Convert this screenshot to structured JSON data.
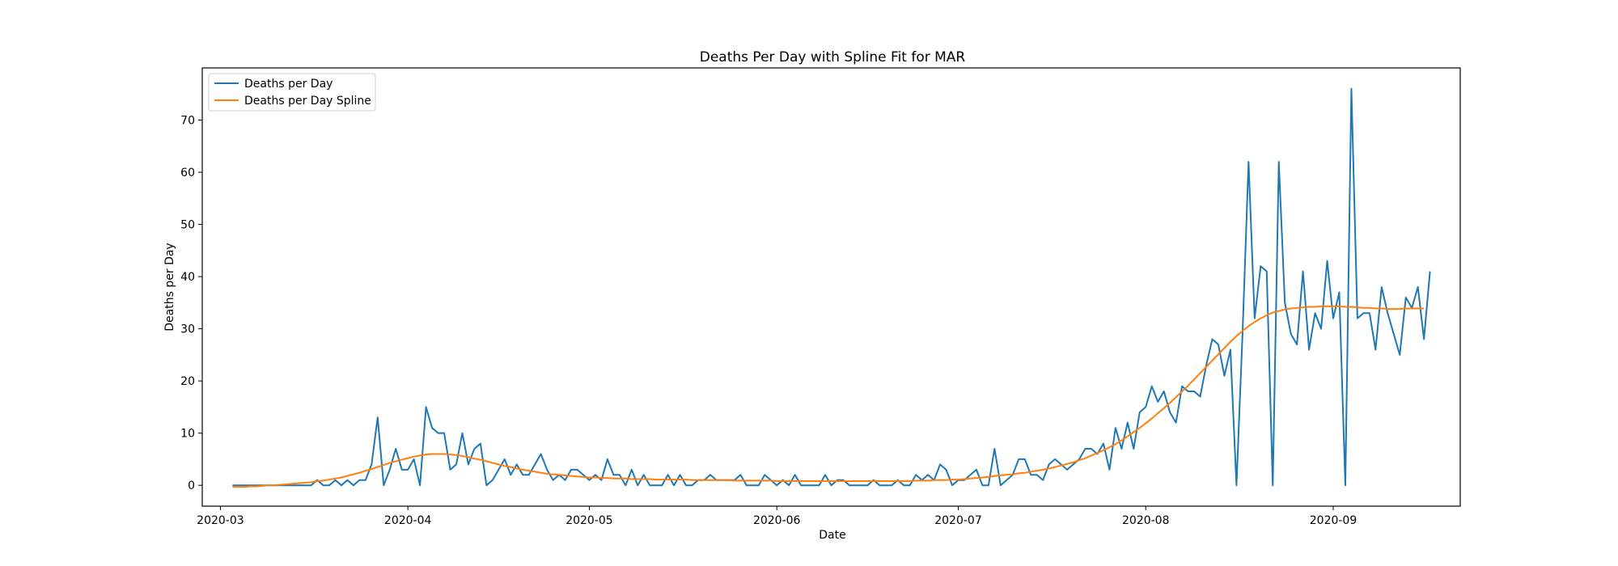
{
  "chart_data": {
    "type": "line",
    "title": "Deaths Per Day with Spline Fit for MAR",
    "xlabel": "Date",
    "ylabel": "Deaths per Day",
    "start_date": "2020-03-03",
    "x_range_days": [
      -5,
      203
    ],
    "ylim": [
      -4,
      80
    ],
    "x_ticks": [
      {
        "label": "2020-03",
        "day": -2
      },
      {
        "label": "2020-04",
        "day": 29
      },
      {
        "label": "2020-05",
        "day": 59
      },
      {
        "label": "2020-06",
        "day": 90
      },
      {
        "label": "2020-07",
        "day": 120
      },
      {
        "label": "2020-08",
        "day": 151
      },
      {
        "label": "2020-09",
        "day": 182
      }
    ],
    "y_ticks": [
      0,
      10,
      20,
      30,
      40,
      50,
      60,
      70
    ],
    "legend": {
      "position": "upper-left"
    },
    "series": [
      {
        "name": "Deaths per Day",
        "color": "#1f77b4",
        "values": [
          0,
          0,
          0,
          0,
          0,
          0,
          0,
          0,
          0,
          0,
          0,
          0,
          0,
          0,
          1,
          0,
          0,
          1,
          0,
          1,
          0,
          1,
          1,
          4,
          13,
          0,
          3,
          7,
          3,
          3,
          5,
          0,
          15,
          11,
          10,
          10,
          3,
          4,
          10,
          4,
          7,
          8,
          0,
          1,
          3,
          5,
          2,
          4,
          2,
          2,
          4,
          6,
          3,
          1,
          2,
          1,
          3,
          3,
          2,
          1,
          2,
          1,
          5,
          2,
          2,
          0,
          3,
          0,
          2,
          0,
          0,
          0,
          2,
          0,
          2,
          0,
          0,
          1,
          1,
          2,
          1,
          1,
          1,
          1,
          2,
          0,
          0,
          0,
          2,
          1,
          0,
          1,
          0,
          2,
          0,
          0,
          0,
          0,
          2,
          0,
          1,
          1,
          0,
          0,
          0,
          0,
          1,
          0,
          0,
          0,
          1,
          0,
          0,
          2,
          1,
          2,
          1,
          4,
          3,
          0,
          1,
          1,
          2,
          3,
          0,
          0,
          7,
          0,
          1,
          2,
          5,
          5,
          2,
          2,
          1,
          4,
          5,
          4,
          3,
          4,
          5,
          7,
          7,
          6,
          8,
          3,
          11,
          7,
          12,
          7,
          14,
          15,
          19,
          16,
          18,
          14,
          12,
          19,
          18,
          18,
          17,
          23,
          28,
          27,
          21,
          26,
          0,
          29,
          62,
          32,
          42,
          41,
          0,
          62,
          35,
          29,
          27,
          41,
          26,
          33,
          30,
          43,
          32,
          37,
          0,
          76,
          32,
          33,
          33,
          26,
          38,
          33,
          29,
          25,
          36,
          34,
          38,
          28,
          41
        ]
      },
      {
        "name": "Deaths per Day Spline",
        "color": "#ff7f0e",
        "values": [
          -0.3,
          -0.3,
          -0.3,
          -0.2,
          -0.2,
          -0.1,
          0,
          0,
          0.1,
          0.2,
          0.3,
          0.4,
          0.5,
          0.6,
          0.8,
          0.9,
          1.1,
          1.3,
          1.5,
          1.8,
          2.1,
          2.4,
          2.8,
          3.1,
          3.5,
          3.9,
          4.3,
          4.6,
          4.9,
          5.2,
          5.5,
          5.7,
          5.9,
          6,
          6,
          6,
          5.9,
          5.8,
          5.6,
          5.4,
          5.1,
          4.9,
          4.6,
          4.3,
          4,
          3.7,
          3.5,
          3.2,
          3,
          2.8,
          2.6,
          2.4,
          2.2,
          2.1,
          2,
          1.9,
          1.8,
          1.7,
          1.6,
          1.5,
          1.5,
          1.4,
          1.4,
          1.3,
          1.3,
          1.3,
          1.2,
          1.2,
          1.2,
          1.2,
          1.1,
          1.1,
          1.1,
          1.1,
          1.1,
          1.1,
          1,
          1,
          1,
          1,
          1,
          1,
          1,
          0.9,
          0.9,
          0.9,
          0.9,
          0.9,
          0.9,
          0.9,
          0.8,
          0.8,
          0.8,
          0.8,
          0.8,
          0.8,
          0.8,
          0.8,
          0.8,
          0.8,
          0.8,
          0.8,
          0.8,
          0.8,
          0.8,
          0.8,
          0.8,
          0.8,
          0.8,
          0.8,
          0.8,
          0.8,
          0.8,
          0.9,
          0.9,
          0.9,
          1,
          1,
          1,
          1.1,
          1.1,
          1.2,
          1.3,
          1.4,
          1.5,
          1.6,
          1.8,
          1.9,
          2,
          2.1,
          2.3,
          2.4,
          2.6,
          2.8,
          3,
          3.2,
          3.5,
          3.8,
          4.1,
          4.4,
          4.8,
          5.2,
          5.7,
          6.2,
          6.7,
          7.3,
          7.9,
          8.6,
          9.4,
          10.2,
          11,
          11.9,
          12.8,
          13.8,
          14.8,
          15.8,
          16.9,
          18,
          19.1,
          20.3,
          21.5,
          22.7,
          23.9,
          25.1,
          26.3,
          27.5,
          28.6,
          29.6,
          30.5,
          31.3,
          32,
          32.6,
          33.1,
          33.4,
          33.7,
          33.9,
          34,
          34.1,
          34.2,
          34.2,
          34.3,
          34.3,
          34.3,
          34.3,
          34.2,
          34.2,
          34.1,
          34,
          34,
          33.9,
          33.9,
          33.8,
          33.8,
          33.8,
          33.9,
          33.9,
          33.9,
          33.9
        ]
      }
    ]
  }
}
